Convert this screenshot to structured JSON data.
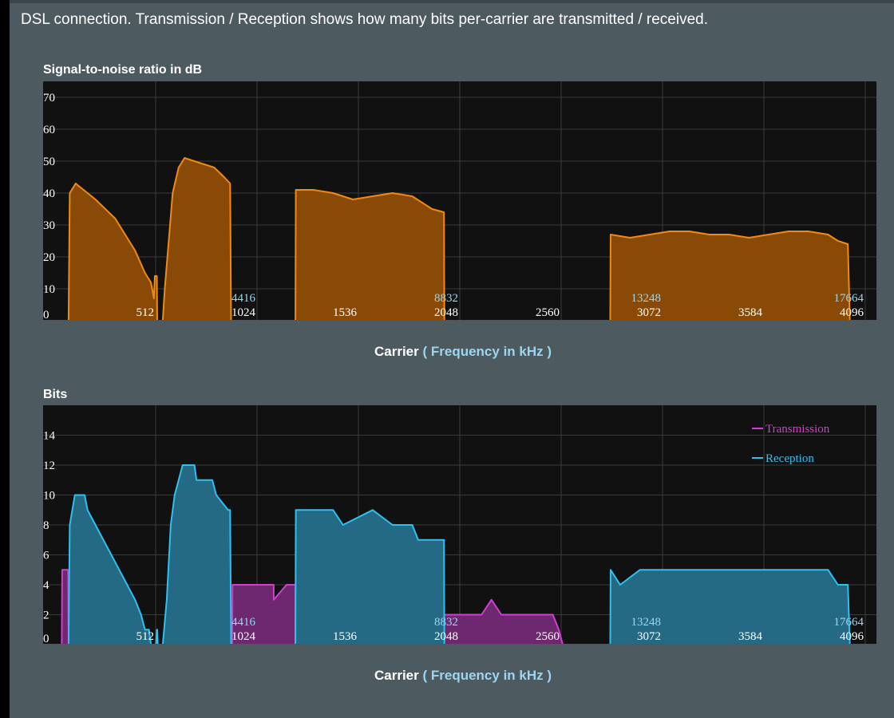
{
  "intro_text": "DSL connection. Transmission / Reception shows how many bits per-carrier are transmitted / received.",
  "colors": {
    "page_bg": "#4d5a60",
    "plot_bg": "#111111",
    "grid": "#3a3a3a",
    "snr_fill": "#8a4a07",
    "snr_line": "#f08a10",
    "transmission": "#d040d0",
    "transmission_fill": "#6e2870",
    "reception": "#2ec0f0",
    "reception_fill": "#256a84"
  },
  "xlabel": {
    "prefix": "Carrier",
    "suffix": "( Frequency in kHz )"
  },
  "chart_data": [
    {
      "type": "area",
      "title": "Signal-to-noise ratio in dB",
      "xlabel": "Carrier ( Frequency in kHz )",
      "ylabel": "",
      "xlim": [
        0,
        4096
      ],
      "ylim": [
        0,
        75
      ],
      "yticks": [
        0,
        10,
        20,
        30,
        40,
        50,
        60,
        70
      ],
      "xticks": [
        512,
        1024,
        1536,
        2048,
        2560,
        3072,
        3584,
        4096
      ],
      "freq_ticks": [
        {
          "carrier": 1024,
          "label": "4416"
        },
        {
          "carrier": 2048,
          "label": "8832"
        },
        {
          "carrier": 3072,
          "label": "13248"
        },
        {
          "carrier": 4096,
          "label": "17664"
        }
      ],
      "grid": true,
      "series": [
        {
          "segments": [
            [
              [
                64,
                0
              ],
              [
                70,
                40
              ],
              [
                100,
                43
              ],
              [
                200,
                38
              ],
              [
                300,
                32
              ],
              [
                400,
                22
              ],
              [
                450,
                15
              ],
              [
                480,
                12
              ],
              [
                495,
                7
              ],
              [
                500,
                14
              ],
              [
                510,
                14
              ],
              [
                512,
                0
              ]
            ],
            [
              [
                540,
                0
              ],
              [
                550,
                10
              ],
              [
                570,
                25
              ],
              [
                590,
                40
              ],
              [
                620,
                48
              ],
              [
                650,
                51
              ],
              [
                700,
                50
              ],
              [
                800,
                48
              ],
              [
                850,
                45
              ],
              [
                880,
                43
              ],
              [
                885,
                0
              ]
            ],
            [
              [
                1210,
                0
              ],
              [
                1212,
                41
              ],
              [
                1300,
                41
              ],
              [
                1400,
                40
              ],
              [
                1500,
                38
              ],
              [
                1600,
                39
              ],
              [
                1700,
                40
              ],
              [
                1800,
                39
              ],
              [
                1850,
                37
              ],
              [
                1900,
                35
              ],
              [
                1960,
                34
              ],
              [
                1962,
                0
              ]
            ],
            [
              [
                2800,
                0
              ],
              [
                2802,
                27
              ],
              [
                2900,
                26
              ],
              [
                3000,
                27
              ],
              [
                3100,
                28
              ],
              [
                3200,
                28
              ],
              [
                3300,
                27
              ],
              [
                3400,
                27
              ],
              [
                3500,
                26
              ],
              [
                3600,
                27
              ],
              [
                3700,
                28
              ],
              [
                3800,
                28
              ],
              [
                3900,
                27
              ],
              [
                3950,
                25
              ],
              [
                4000,
                24
              ],
              [
                4010,
                0
              ]
            ]
          ]
        }
      ]
    },
    {
      "type": "area",
      "title": "Bits",
      "xlabel": "Carrier ( Frequency in kHz )",
      "ylabel": "",
      "xlim": [
        0,
        4096
      ],
      "ylim": [
        0,
        16
      ],
      "yticks": [
        0,
        2,
        4,
        6,
        8,
        10,
        12,
        14
      ],
      "xticks": [
        512,
        1024,
        1536,
        2048,
        2560,
        3072,
        3584,
        4096
      ],
      "freq_ticks": [
        {
          "carrier": 1024,
          "label": "4416"
        },
        {
          "carrier": 2048,
          "label": "8832"
        },
        {
          "carrier": 3072,
          "label": "13248"
        },
        {
          "carrier": 4096,
          "label": "17664"
        }
      ],
      "legend_position": "top-right",
      "grid": true,
      "series": [
        {
          "name": "Transmission",
          "segments": [
            [
              [
                30,
                0
              ],
              [
                32,
                5
              ],
              [
                62,
                5
              ],
              [
                64,
                0
              ]
            ],
            [
              [
                890,
                0
              ],
              [
                892,
                4
              ],
              [
                1050,
                4
              ],
              [
                1100,
                4
              ],
              [
                1100,
                3
              ],
              [
                1165,
                4
              ],
              [
                1210,
                4
              ],
              [
                1210,
                0
              ]
            ],
            [
              [
                1960,
                0
              ],
              [
                1962,
                2
              ],
              [
                2050,
                2
              ],
              [
                2100,
                2
              ],
              [
                2150,
                2
              ],
              [
                2200,
                3
              ],
              [
                2250,
                2
              ],
              [
                2350,
                2
              ],
              [
                2400,
                2
              ],
              [
                2450,
                2
              ],
              [
                2510,
                2
              ],
              [
                2540,
                1
              ],
              [
                2560,
                0
              ]
            ]
          ]
        },
        {
          "name": "Reception",
          "segments": [
            [
              [
                64,
                0
              ],
              [
                70,
                8
              ],
              [
                96,
                10
              ],
              [
                145,
                10
              ],
              [
                160,
                9
              ],
              [
                200,
                8
              ],
              [
                240,
                7
              ],
              [
                280,
                6
              ],
              [
                320,
                5
              ],
              [
                360,
                4
              ],
              [
                400,
                3
              ],
              [
                430,
                2
              ],
              [
                450,
                1
              ],
              [
                470,
                1
              ],
              [
                480,
                0
              ]
            ],
            [
              [
                505,
                0
              ],
              [
                510,
                1
              ],
              [
                512,
                1
              ],
              [
                515,
                0
              ]
            ],
            [
              [
                540,
                0
              ],
              [
                560,
                3
              ],
              [
                580,
                8
              ],
              [
                600,
                10
              ],
              [
                620,
                11
              ],
              [
                640,
                12
              ],
              [
                700,
                12
              ],
              [
                710,
                11
              ],
              [
                790,
                11
              ],
              [
                810,
                10
              ],
              [
                870,
                9
              ],
              [
                880,
                9
              ],
              [
                885,
                0
              ]
            ],
            [
              [
                1210,
                0
              ],
              [
                1212,
                9
              ],
              [
                1400,
                9
              ],
              [
                1450,
                8
              ],
              [
                1600,
                9
              ],
              [
                1700,
                8
              ],
              [
                1800,
                8
              ],
              [
                1830,
                7
              ],
              [
                1900,
                7
              ],
              [
                1960,
                7
              ],
              [
                1962,
                0
              ]
            ],
            [
              [
                2800,
                0
              ],
              [
                2802,
                5
              ],
              [
                2850,
                4
              ],
              [
                2950,
                5
              ],
              [
                3100,
                5
              ],
              [
                3300,
                5
              ],
              [
                3500,
                5
              ],
              [
                3700,
                5
              ],
              [
                3900,
                5
              ],
              [
                3950,
                4
              ],
              [
                4000,
                4
              ],
              [
                4010,
                0
              ]
            ]
          ]
        }
      ]
    }
  ]
}
